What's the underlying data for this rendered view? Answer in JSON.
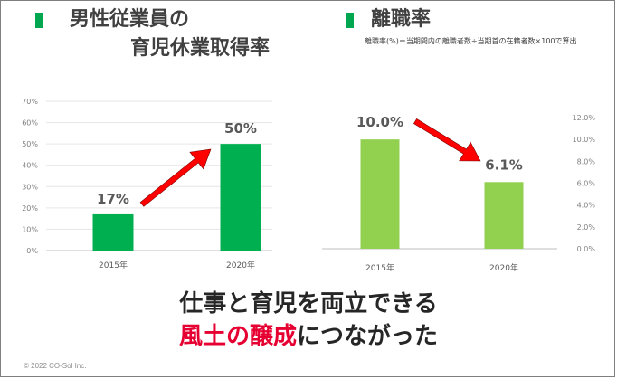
{
  "left_panel": {
    "title_line1": "男性従業員の",
    "title_line2": "育児休業取得率"
  },
  "right_panel": {
    "title": "離職率",
    "note": "離職率(%)＝当期間内の離職者数÷当期首の在籍者数×100で算出"
  },
  "colors": {
    "title_marker": "#00a650",
    "left_bars": "#00b050",
    "right_bars": "#92d050",
    "arrow": "#ff0000",
    "accent_text": "#e60032"
  },
  "chart_data": [
    {
      "type": "bar",
      "categories": [
        "2015年",
        "2020年"
      ],
      "values": [
        17,
        50
      ],
      "data_labels": [
        "17%",
        "50%"
      ],
      "ylim": [
        0,
        70
      ],
      "yticks": [
        "0%",
        "10%",
        "20%",
        "30%",
        "40%",
        "50%",
        "60%",
        "70%"
      ],
      "yaxis_side": "left",
      "grid": true
    },
    {
      "type": "bar",
      "categories": [
        "2015年",
        "2020年"
      ],
      "values": [
        10.0,
        6.1
      ],
      "data_labels": [
        "10.0%",
        "6.1%"
      ],
      "ylim": [
        0,
        12
      ],
      "yticks": [
        "0.0%",
        "2.0%",
        "4.0%",
        "6.0%",
        "8.0%",
        "10.0%",
        "12.0%"
      ],
      "yaxis_side": "right",
      "grid": false
    }
  ],
  "message": {
    "line1": "仕事と育児を両立できる",
    "line2_accent": "風土の醸成",
    "line2_rest": "につながった"
  },
  "footer": {
    "copyright": "© 2022 CO-Sol Inc."
  }
}
